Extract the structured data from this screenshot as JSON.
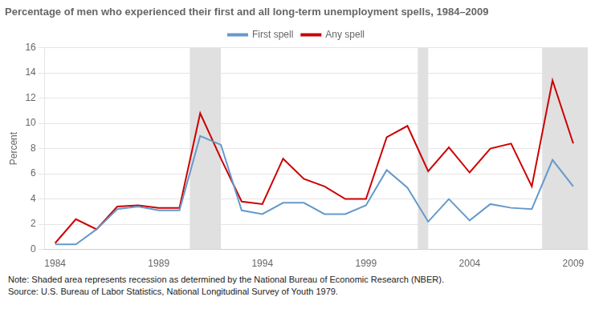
{
  "chart_data": {
    "type": "line",
    "title": "Percentage of men who experienced their first and all long-term unemployment spells, 1984–2009",
    "ylabel": "Percent",
    "annotations": [
      "Note: Shaded area represents recession as determined by the National Bureau of Economic Research (NBER).",
      "Source: U.S. Bureau of Labor Statistics, National Longitudinal Survey of Youth 1979."
    ],
    "x": [
      1984,
      1985,
      1986,
      1987,
      1988,
      1989,
      1990,
      1991,
      1992,
      1993,
      1994,
      1995,
      1996,
      1997,
      1998,
      1999,
      2000,
      2001,
      2002,
      2003,
      2004,
      2005,
      2006,
      2007,
      2008,
      2009
    ],
    "series": [
      {
        "name": "First spell",
        "color": "#6699cc",
        "values": [
          0.4,
          0.4,
          1.6,
          3.2,
          3.4,
          3.1,
          3.1,
          9.0,
          8.3,
          3.1,
          2.8,
          3.7,
          3.7,
          2.8,
          2.8,
          3.5,
          6.3,
          4.9,
          2.2,
          4.0,
          2.3,
          3.6,
          3.3,
          3.2,
          7.1,
          5.0
        ]
      },
      {
        "name": "Any spell",
        "color": "#cc0000",
        "values": [
          0.5,
          2.4,
          1.6,
          3.4,
          3.5,
          3.3,
          3.3,
          10.8,
          7.2,
          3.8,
          3.6,
          7.2,
          5.6,
          5.0,
          4.0,
          4.0,
          8.9,
          9.8,
          6.2,
          8.1,
          6.1,
          8.0,
          8.4,
          5.0,
          13.4,
          8.4
        ]
      }
    ],
    "bands": {
      "x_ranges": [
        [
          1990.5,
          1992
        ],
        [
          2001.5,
          2002
        ],
        [
          2007.5,
          2010
        ]
      ],
      "color": "#e0e0e0"
    },
    "xlim": [
      1983.5,
      2009.7
    ],
    "xticks": [
      1984,
      1989,
      1994,
      1999,
      2004,
      2009
    ],
    "ylim": [
      0,
      16
    ],
    "yticks": [
      0,
      2,
      4,
      6,
      8,
      10,
      12,
      14,
      16
    ],
    "grid": "y",
    "legend": "top"
  }
}
